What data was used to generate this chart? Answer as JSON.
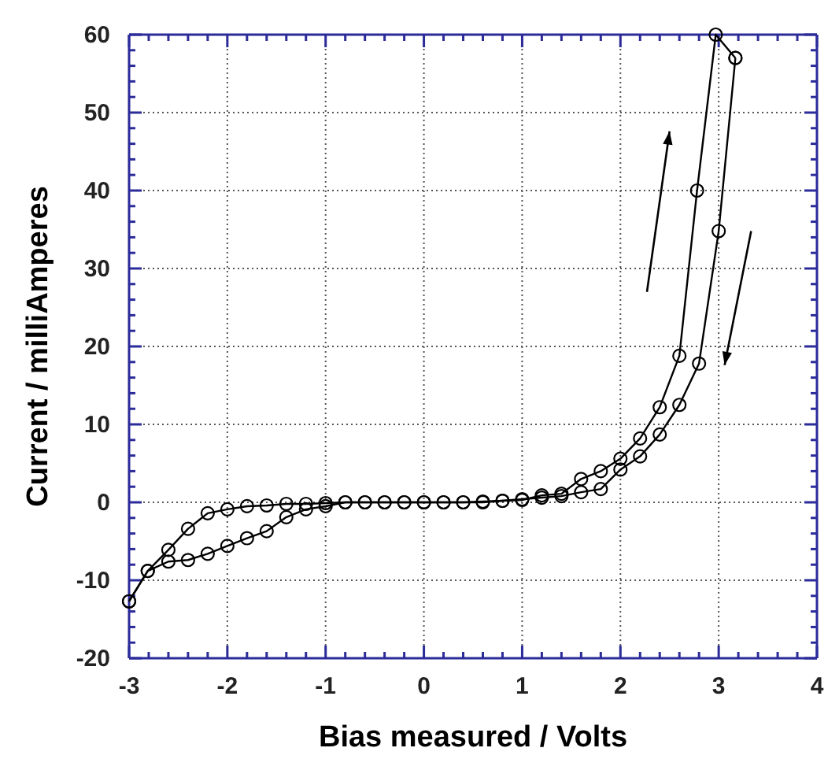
{
  "chart_data": {
    "type": "line",
    "xlabel": "Bias measured / Volts",
    "ylabel": "Current / milliAmperes",
    "xlim": [
      -3,
      4
    ],
    "xticks": [
      -3,
      -2,
      -1,
      0,
      1,
      2,
      3,
      4
    ],
    "ylim": [
      -20,
      60
    ],
    "yticks": [
      -20,
      -10,
      0,
      10,
      20,
      30,
      40,
      50,
      60
    ],
    "grid": true,
    "marker": "circle",
    "line_style": "solid",
    "series": [
      {
        "color": "#000000",
        "x": [
          -3.0,
          -2.81,
          -2.6,
          -2.4,
          -2.2,
          -2.0,
          -1.8,
          -1.6,
          -1.4,
          -1.2,
          -1.0,
          -0.8,
          -0.6,
          -0.4,
          -0.2,
          0.0,
          0.2,
          0.4,
          0.6,
          0.8,
          1.0,
          1.2,
          1.4,
          1.6,
          1.8,
          2.0,
          2.2,
          2.4,
          2.6,
          2.78,
          2.97,
          3.17
        ],
        "values": [
          -12.7,
          -8.8,
          -7.6,
          -7.4,
          -6.6,
          -5.6,
          -4.6,
          -3.7,
          -1.9,
          -0.9,
          -0.5,
          0,
          0,
          0,
          0,
          0,
          0,
          0,
          0.1,
          0.2,
          0.3,
          0.9,
          1.1,
          3.0,
          4.0,
          5.6,
          8.2,
          12.2,
          18.8,
          40,
          60,
          57
        ]
      },
      {
        "color": "#000000",
        "x": [
          -3.0,
          -2.81,
          -2.6,
          -2.4,
          -2.2,
          -2.0,
          -1.8,
          -1.6,
          -1.4,
          -1.2,
          -1.0,
          -0.8,
          -0.6,
          -0.4,
          -0.2,
          0.0,
          0.2,
          0.4,
          0.6,
          0.8,
          1.0,
          1.2,
          1.4,
          1.6,
          1.8,
          2.0,
          2.2,
          2.4,
          2.6,
          2.8,
          3.0,
          3.17
        ],
        "values": [
          -12.7,
          -8.8,
          -6.1,
          -3.4,
          -1.4,
          -0.9,
          -0.5,
          -0.4,
          -0.2,
          -0.2,
          -0.1,
          0,
          0,
          0,
          0,
          0,
          0,
          0,
          0,
          0.2,
          0.4,
          0.6,
          0.8,
          1.3,
          1.7,
          4.2,
          5.9,
          8.7,
          12.5,
          17.8,
          34.8,
          57
        ]
      }
    ]
  }
}
